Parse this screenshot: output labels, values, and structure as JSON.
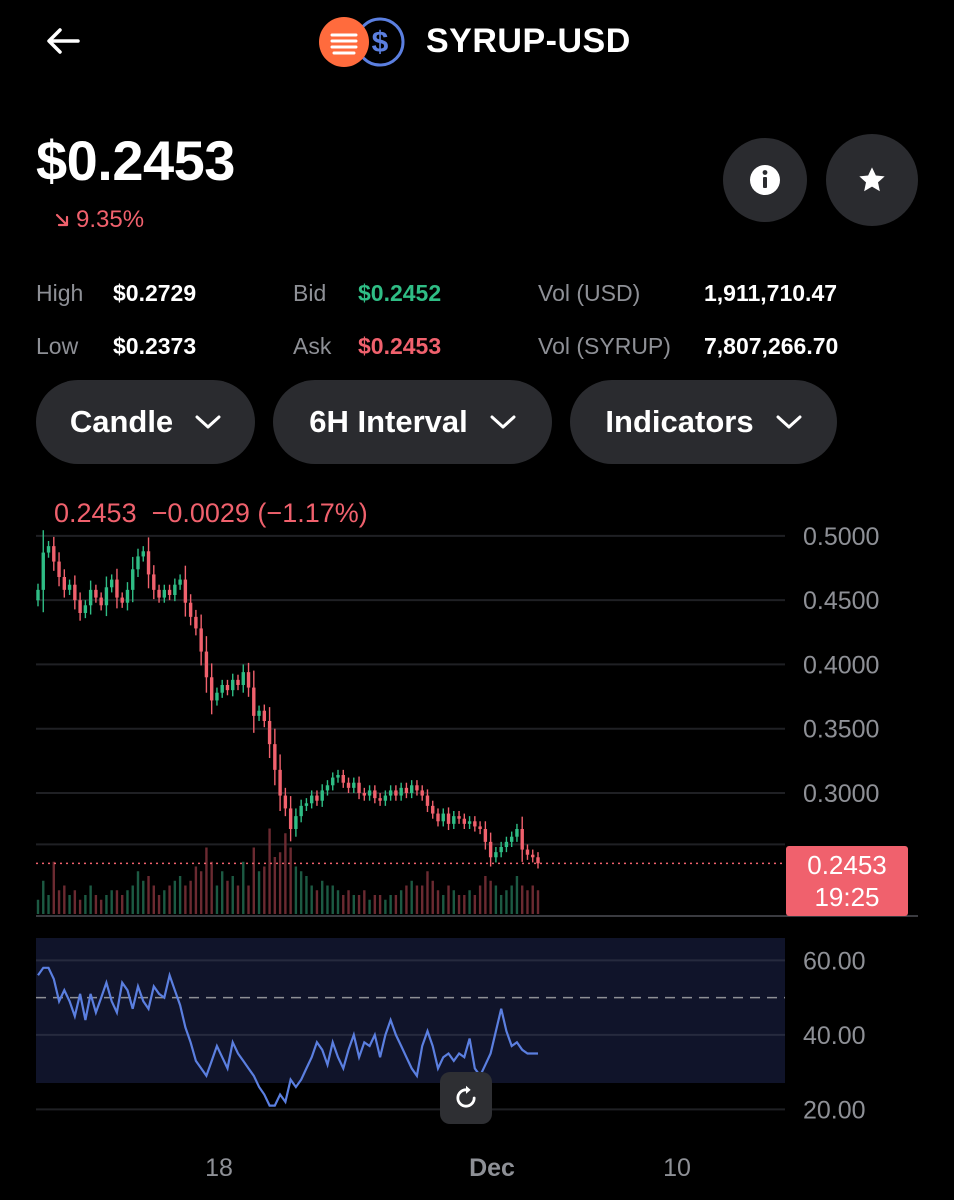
{
  "header": {
    "back_icon": "arrow-left-icon",
    "pair": "SYRUP-USD",
    "base_coin_icon": "syrup-coin-icon",
    "quote_coin_icon": "usd-coin-icon"
  },
  "price": {
    "current": "$0.2453",
    "change_pct": "9.35%",
    "change_direction": "down",
    "info_icon": "info-icon",
    "favorite_icon": "star-icon"
  },
  "stats": {
    "high_label": "High",
    "high_value": "$0.2729",
    "low_label": "Low",
    "low_value": "$0.2373",
    "bid_label": "Bid",
    "bid_value": "$0.2452",
    "ask_label": "Ask",
    "ask_value": "$0.2453",
    "vol_usd_label": "Vol (USD)",
    "vol_usd_value": "1,911,710.47",
    "vol_syrup_label": "Vol (SYRUP)",
    "vol_syrup_value": "7,807,266.70"
  },
  "controls": {
    "chart_type": "Candle",
    "interval": "6H Interval",
    "indicators": "Indicators"
  },
  "chart": {
    "ohlc_readout": "0.2453  −0.0029 (−1.17%)",
    "last_price_tag": "0.2453",
    "countdown": "19:25",
    "price_ticks": [
      "0.5000",
      "0.4500",
      "0.4000",
      "0.3500",
      "0.3000"
    ],
    "rsi_ticks": [
      "60.00",
      "40.00",
      "20.00"
    ],
    "x_ticks": [
      {
        "label": "18",
        "bold": false
      },
      {
        "label": "Dec",
        "bold": true
      },
      {
        "label": "10",
        "bold": false
      }
    ],
    "reset_icon": "reset-icon",
    "colors": {
      "up": "#2fbd85",
      "down": "#f0616d",
      "rsi": "#5b7fe0"
    }
  },
  "chart_data": {
    "type": "candlestick",
    "title": "",
    "xlabel": "",
    "ylabel": "",
    "ylim": [
      0.23,
      0.51
    ],
    "rsi_ylim": [
      15,
      66
    ],
    "x_tick_labels": [
      "18",
      "Dec",
      "10"
    ],
    "closes": [
      0.458,
      0.487,
      0.492,
      0.48,
      0.468,
      0.458,
      0.462,
      0.45,
      0.44,
      0.446,
      0.458,
      0.452,
      0.446,
      0.46,
      0.466,
      0.452,
      0.448,
      0.458,
      0.474,
      0.484,
      0.488,
      0.47,
      0.458,
      0.452,
      0.458,
      0.454,
      0.462,
      0.466,
      0.448,
      0.437,
      0.428,
      0.41,
      0.39,
      0.372,
      0.378,
      0.384,
      0.38,
      0.388,
      0.384,
      0.394,
      0.382,
      0.36,
      0.364,
      0.356,
      0.338,
      0.318,
      0.298,
      0.288,
      0.272,
      0.282,
      0.29,
      0.292,
      0.298,
      0.294,
      0.302,
      0.306,
      0.312,
      0.314,
      0.308,
      0.304,
      0.308,
      0.3,
      0.298,
      0.302,
      0.296,
      0.294,
      0.298,
      0.302,
      0.298,
      0.304,
      0.3,
      0.306,
      0.302,
      0.298,
      0.29,
      0.284,
      0.278,
      0.284,
      0.276,
      0.282,
      0.28,
      0.276,
      0.278,
      0.274,
      0.272,
      0.262,
      0.25,
      0.254,
      0.258,
      0.262,
      0.266,
      0.272,
      0.256,
      0.252,
      0.25,
      0.2453
    ],
    "volumes": [
      0.15,
      0.35,
      0.2,
      0.55,
      0.25,
      0.3,
      0.2,
      0.25,
      0.15,
      0.2,
      0.3,
      0.2,
      0.15,
      0.2,
      0.25,
      0.25,
      0.2,
      0.25,
      0.3,
      0.45,
      0.35,
      0.4,
      0.3,
      0.2,
      0.25,
      0.3,
      0.35,
      0.4,
      0.3,
      0.35,
      0.5,
      0.45,
      0.7,
      0.55,
      0.3,
      0.45,
      0.35,
      0.4,
      0.3,
      0.55,
      0.3,
      0.7,
      0.45,
      0.5,
      0.9,
      0.6,
      0.65,
      0.85,
      0.7,
      0.5,
      0.45,
      0.4,
      0.3,
      0.25,
      0.35,
      0.3,
      0.3,
      0.25,
      0.2,
      0.25,
      0.2,
      0.2,
      0.25,
      0.15,
      0.2,
      0.2,
      0.15,
      0.2,
      0.2,
      0.25,
      0.3,
      0.35,
      0.3,
      0.3,
      0.45,
      0.35,
      0.25,
      0.2,
      0.3,
      0.25,
      0.2,
      0.2,
      0.25,
      0.2,
      0.3,
      0.4,
      0.35,
      0.3,
      0.2,
      0.25,
      0.3,
      0.4,
      0.3,
      0.25,
      0.3,
      0.25
    ],
    "rsi": [
      56,
      58,
      58,
      55,
      49,
      52,
      49,
      45,
      51,
      44,
      51,
      46,
      50,
      54,
      49,
      46,
      54,
      52,
      47,
      53,
      49,
      47,
      53,
      51,
      50,
      56,
      52,
      48,
      42,
      38,
      33,
      31,
      29,
      33,
      37,
      34,
      31,
      38,
      35,
      33,
      31,
      29,
      26,
      24,
      21,
      21,
      24,
      22,
      28,
      26,
      28,
      31,
      34,
      38,
      36,
      32,
      38,
      34,
      31,
      36,
      40,
      34,
      38,
      37,
      40,
      34,
      40,
      44,
      40,
      37,
      34,
      31,
      29,
      37,
      41,
      37,
      31,
      34,
      35,
      33,
      35,
      34,
      39,
      31,
      29,
      32,
      35,
      41,
      47,
      41,
      37,
      38,
      36,
      35,
      35,
      35
    ]
  }
}
